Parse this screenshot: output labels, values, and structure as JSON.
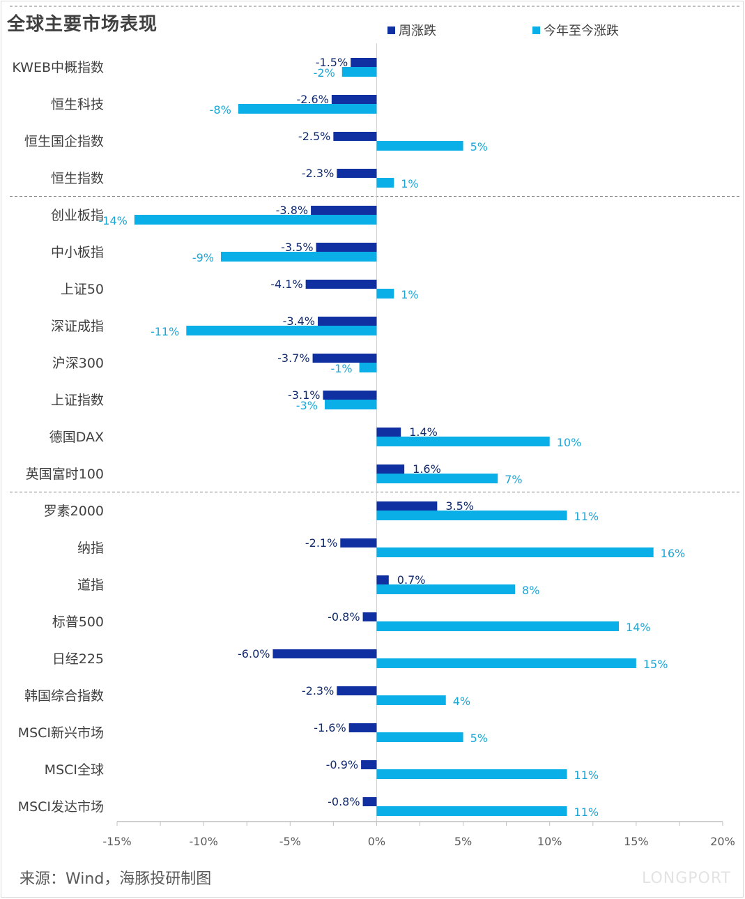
{
  "title": "全球主要市场表现",
  "source": "来源：Wind，海豚投研制图",
  "watermark": "LONGPORT",
  "chart_data": {
    "type": "bar",
    "orientation": "horizontal",
    "categories": [
      "KWEB中概指数",
      "恒生科技",
      "恒生国企指数",
      "恒生指数",
      "创业板指",
      "中小板指",
      "上证50",
      "深证成指",
      "沪深300",
      "上证指数",
      "德国DAX",
      "英国富时100",
      "罗素2000",
      "纳指",
      "道指",
      "标普500",
      "日经225",
      "韩国综合指数",
      "MSCI新兴市场",
      "MSCI全球",
      "MSCI发达市场"
    ],
    "series": [
      {
        "name": "周涨跌",
        "color": "#102fa0",
        "values": [
          -1.5,
          -2.6,
          -2.5,
          -2.3,
          -3.8,
          -3.5,
          -4.1,
          -3.4,
          -3.7,
          -3.1,
          1.4,
          1.6,
          3.5,
          -2.1,
          0.7,
          -0.8,
          -6.0,
          -2.3,
          -1.6,
          -0.9,
          -0.8
        ],
        "labels": [
          "-1.5%",
          "-2.6%",
          "-2.5%",
          "-2.3%",
          "-3.8%",
          "-3.5%",
          "-4.1%",
          "-3.4%",
          "-3.7%",
          "-3.1%",
          "1.4%",
          "1.6%",
          "3.5%",
          "-2.1%",
          "0.7%",
          "-0.8%",
          "-6.0%",
          "-2.3%",
          "-1.6%",
          "-0.9%",
          "-0.8%"
        ]
      },
      {
        "name": "今年至今涨跌",
        "color": "#0aafe8",
        "values": [
          -2,
          -8,
          5,
          1,
          -14,
          -9,
          1,
          -11,
          -1,
          -3,
          10,
          7,
          11,
          16,
          8,
          14,
          15,
          4,
          5,
          11,
          11
        ],
        "labels": [
          "-2%",
          "-8%",
          "5%",
          "1%",
          "-14%",
          "-9%",
          "1%",
          "-11%",
          "-1%",
          "-3%",
          "10%",
          "7%",
          "11%",
          "16%",
          "8%",
          "14%",
          "15%",
          "4%",
          "5%",
          "11%",
          "11%"
        ]
      }
    ],
    "group_separators_after_index": [
      3,
      11
    ],
    "xlim": [
      -15,
      20
    ],
    "xticks": [
      -15,
      -10,
      -5,
      0,
      5,
      10,
      15,
      20
    ],
    "xtick_labels": [
      "-15%",
      "-10%",
      "-5%",
      "0%",
      "5%",
      "10%",
      "15%",
      "20%"
    ],
    "legend_position": "top",
    "grid": false
  },
  "colors": {
    "text": "#404040",
    "axis": "#bfbfbf",
    "separator": "#7f7f7f"
  }
}
